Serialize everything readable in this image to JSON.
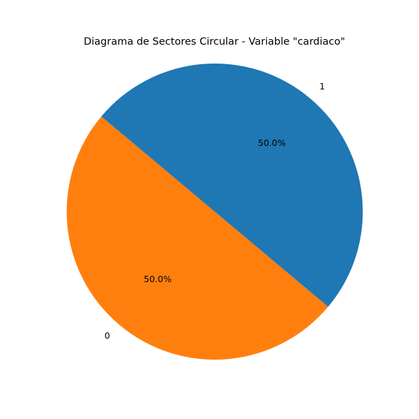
{
  "chart_data": {
    "type": "pie",
    "title": "Diagrama de Sectores Circular - Variable \"cardiaco\"",
    "categories": [
      "0",
      "1"
    ],
    "values": [
      50.0,
      50.0
    ],
    "percent_labels": [
      "50.0%",
      "50.0%"
    ],
    "colors": [
      "#ff7f0e",
      "#1f77b4"
    ],
    "start_angle_deg": 140,
    "direction": "counterclockwise",
    "legend": "none"
  }
}
